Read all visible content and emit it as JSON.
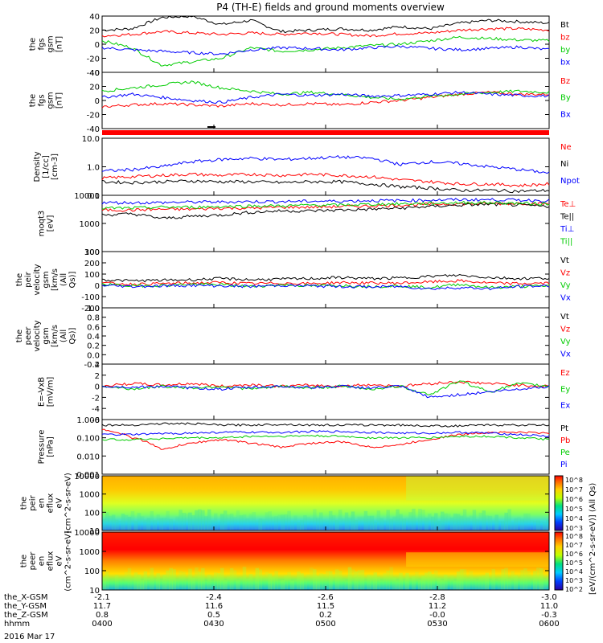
{
  "title": "P4 (TH-E) fields and ground moments overview",
  "date_label": "2016 Mar 17",
  "x_axis": {
    "rows": [
      {
        "label": "the_X-GSM",
        "values": [
          "-2.1",
          "-2.4",
          "-2.6",
          "-2.8",
          "-3.0"
        ]
      },
      {
        "label": "the_Y-GSM",
        "values": [
          "11.7",
          "11.6",
          "11.5",
          "11.2",
          "11.0"
        ]
      },
      {
        "label": "the_Z-GSM",
        "values": [
          "0.8",
          "0.5",
          "0.2",
          "-0.0",
          "-0.3"
        ]
      },
      {
        "label": "hhmm",
        "values": [
          "0400",
          "0430",
          "0500",
          "0530",
          "0600"
        ]
      }
    ]
  },
  "colors": {
    "black": "#000000",
    "red": "#ff0000",
    "green": "#00cc00",
    "blue": "#0000ff"
  },
  "colorbar": {
    "label": "[eV/(cm^2-s-sr-eV)] (All Qs)",
    "ticks_top": [
      "10^8",
      "10^7",
      "10^6",
      "10^5",
      "10^4",
      "10^3"
    ],
    "ticks_bottom": [
      "10^8",
      "10^7",
      "10^6",
      "10^5",
      "10^4",
      "10^3",
      "10^2"
    ]
  },
  "chart_data": [
    {
      "type": "line",
      "ylabel": "the fgs gsm [nT]",
      "ylim": [
        -40,
        40
      ],
      "yticks": [
        "40",
        "20",
        "0",
        "-20",
        "-40"
      ],
      "legend": [
        "Bt",
        "bz",
        "by",
        "bx"
      ],
      "legend_colors": [
        "#000000",
        "#ff0000",
        "#00cc00",
        "#0000ff"
      ],
      "series": [
        {
          "name": "Bt",
          "color": "#000000",
          "values": [
            20,
            22,
            38,
            40,
            28,
            34,
            18,
            20,
            22,
            20,
            25,
            22,
            30,
            34,
            32,
            30
          ]
        },
        {
          "name": "bz",
          "color": "#ff0000",
          "values": [
            12,
            14,
            18,
            16,
            14,
            16,
            14,
            16,
            14,
            12,
            15,
            16,
            20,
            22,
            22,
            20
          ]
        },
        {
          "name": "by",
          "color": "#00cc00",
          "values": [
            5,
            -5,
            -30,
            -25,
            -20,
            -5,
            -10,
            -8,
            -5,
            -2,
            0,
            5,
            10,
            8,
            6,
            5
          ]
        },
        {
          "name": "bx",
          "color": "#0000ff",
          "values": [
            -5,
            -8,
            -10,
            -12,
            -14,
            -8,
            -5,
            -6,
            -8,
            -5,
            -3,
            -6,
            -8,
            -6,
            -4,
            -8
          ]
        }
      ]
    },
    {
      "type": "line",
      "ylabel": "the fgs gsm [nT]",
      "ylim": [
        -50,
        40
      ],
      "yticks": [
        "40",
        "20",
        "0",
        "-20",
        "-40"
      ],
      "legend": [
        "Bz",
        "By",
        "Bx"
      ],
      "legend_colors": [
        "#ff0000",
        "#00cc00",
        "#0000ff"
      ],
      "series": [
        {
          "name": "Bz",
          "color": "#ff0000",
          "values": [
            -15,
            -12,
            -10,
            -12,
            -14,
            -10,
            -12,
            -10,
            -12,
            -8,
            -5,
            0,
            5,
            8,
            5,
            5
          ]
        },
        {
          "name": "By",
          "color": "#00cc00",
          "values": [
            10,
            15,
            20,
            25,
            15,
            10,
            5,
            8,
            5,
            0,
            -3,
            2,
            5,
            8,
            10,
            8
          ]
        },
        {
          "name": "Bx",
          "color": "#0000ff",
          "values": [
            0,
            5,
            0,
            -5,
            -8,
            0,
            5,
            3,
            5,
            2,
            3,
            5,
            8,
            5,
            3,
            2
          ]
        }
      ]
    },
    {
      "type": "line",
      "ylabel": "Density [1/cc] [cm-3]",
      "yscale": "log",
      "ylim": [
        0.1,
        10
      ],
      "yticks": [
        "10.0",
        "1.0",
        "0.1"
      ],
      "legend": [
        "Ne",
        "Ni",
        "Npot"
      ],
      "legend_colors": [
        "#ff0000",
        "#000000",
        "#0000ff"
      ],
      "series": [
        {
          "name": "Ne",
          "color": "#ff0000",
          "values": [
            0.4,
            0.45,
            0.5,
            0.55,
            0.5,
            0.55,
            0.5,
            0.55,
            0.5,
            0.45,
            0.35,
            0.3,
            0.25,
            0.25,
            0.22,
            0.25
          ]
        },
        {
          "name": "Ni",
          "color": "#000000",
          "values": [
            0.3,
            0.28,
            0.3,
            0.32,
            0.3,
            0.3,
            0.28,
            0.3,
            0.3,
            0.25,
            0.2,
            0.18,
            0.15,
            0.15,
            0.14,
            0.15
          ]
        },
        {
          "name": "Npot",
          "color": "#0000ff",
          "values": [
            0.7,
            0.8,
            1.0,
            1.5,
            1.8,
            2.0,
            1.8,
            2.0,
            2.2,
            2.0,
            1.2,
            1.5,
            1.3,
            1.0,
            0.8,
            0.6
          ]
        }
      ]
    },
    {
      "type": "line",
      "ylabel": "moqt3 [eV]",
      "yscale": "log",
      "ylim": [
        100,
        10000
      ],
      "yticks": [
        "10000",
        "1000",
        "100"
      ],
      "legend": [
        "Te⊥",
        "Te||",
        "Ti⊥",
        "Ti||"
      ],
      "legend_colors": [
        "#ff0000",
        "#000000",
        "#0000ff",
        "#00cc00"
      ],
      "series": [
        {
          "name": "Te⊥",
          "color": "#ff0000",
          "values": [
            3000,
            3000,
            3200,
            3200,
            3500,
            3500,
            3800,
            3800,
            4000,
            4200,
            4500,
            4800,
            5000,
            5000,
            5200,
            5000
          ]
        },
        {
          "name": "Te||",
          "color": "#000000",
          "values": [
            2000,
            2200,
            1500,
            1800,
            2000,
            2500,
            2800,
            2800,
            3000,
            3200,
            3500,
            4000,
            4500,
            4800,
            4500,
            4000
          ]
        },
        {
          "name": "Ti⊥",
          "color": "#0000ff",
          "values": [
            5500,
            5500,
            5500,
            5800,
            5800,
            6000,
            6000,
            6200,
            6200,
            6500,
            6500,
            6800,
            7000,
            7000,
            6800,
            6500
          ]
        },
        {
          "name": "Ti||",
          "color": "#00cc00",
          "values": [
            3500,
            3500,
            3800,
            3800,
            4000,
            4200,
            4200,
            4500,
            4500,
            4800,
            5000,
            5200,
            5500,
            5500,
            5200,
            5000
          ]
        }
      ]
    },
    {
      "type": "line",
      "ylabel": "the peir velocity gsm [km/s (All Qs)]",
      "ylim": [
        -200,
        300
      ],
      "yticks": [
        "300",
        "200",
        "100",
        "0",
        "-100",
        "-200"
      ],
      "legend": [
        "Vt",
        "Vz",
        "Vy",
        "Vx"
      ],
      "legend_colors": [
        "#000000",
        "#ff0000",
        "#00cc00",
        "#0000ff"
      ],
      "series": [
        {
          "name": "Vt",
          "color": "#000000",
          "values": [
            50,
            40,
            45,
            50,
            60,
            50,
            55,
            60,
            70,
            60,
            65,
            80,
            90,
            70,
            60,
            65
          ]
        },
        {
          "name": "Vz",
          "color": "#ff0000",
          "values": [
            20,
            10,
            15,
            20,
            25,
            15,
            20,
            15,
            25,
            20,
            20,
            30,
            40,
            20,
            15,
            20
          ]
        },
        {
          "name": "Vy",
          "color": "#00cc00",
          "values": [
            10,
            -5,
            0,
            10,
            5,
            -10,
            5,
            -5,
            0,
            -10,
            -5,
            -20,
            10,
            -20,
            -10,
            -5
          ]
        },
        {
          "name": "Vx",
          "color": "#0000ff",
          "values": [
            0,
            -10,
            -5,
            0,
            -5,
            -10,
            0,
            -5,
            -10,
            -15,
            -10,
            -30,
            -20,
            -30,
            -10,
            -5
          ]
        }
      ]
    },
    {
      "type": "line",
      "ylabel": "the peer velocity gsm [km/s (All Qs)]",
      "ylim": [
        -0.2,
        1.0
      ],
      "yticks": [
        "1.0",
        "0.8",
        "0.6",
        "0.4",
        "0.2",
        "0.0",
        "-0.2"
      ],
      "legend": [
        "Vt",
        "Vz",
        "Vy",
        "Vx"
      ],
      "legend_colors": [
        "#000000",
        "#ff0000",
        "#00cc00",
        "#0000ff"
      ],
      "series": []
    },
    {
      "type": "line",
      "ylabel": "E=-VxB [mV/m]",
      "ylim": [
        -6,
        4
      ],
      "yticks": [
        "4",
        "2",
        "0",
        "-2",
        "-4",
        "-6"
      ],
      "legend": [
        "Ez",
        "Ey",
        "Ex"
      ],
      "legend_colors": [
        "#ff0000",
        "#00cc00",
        "#0000ff"
      ],
      "series": [
        {
          "name": "Ez",
          "color": "#ff0000",
          "values": [
            0,
            0.5,
            0.2,
            0.5,
            0,
            0.3,
            0,
            0.2,
            0,
            0.3,
            0,
            0.5,
            0.8,
            0.5,
            0.2,
            0
          ]
        },
        {
          "name": "Ey",
          "color": "#00cc00",
          "values": [
            0,
            -0.5,
            0,
            -0.3,
            0,
            -0.5,
            0,
            -0.3,
            0,
            -0.5,
            0,
            -1.5,
            1,
            -1,
            0.5,
            0
          ]
        },
        {
          "name": "Ex",
          "color": "#0000ff",
          "values": [
            0,
            -0.2,
            0,
            -0.3,
            -0.5,
            -0.2,
            0,
            -0.2,
            0,
            -0.3,
            0,
            -2,
            -1.5,
            -1,
            -0.5,
            0
          ]
        }
      ]
    },
    {
      "type": "line",
      "ylabel": "Pressure [nPa]",
      "yscale": "log",
      "ylim": [
        0.001,
        1.0
      ],
      "yticks": [
        "1.000",
        "0.100",
        "0.010",
        "0.001"
      ],
      "legend": [
        "Pt",
        "Pb",
        "Pe",
        "Pi"
      ],
      "legend_colors": [
        "#000000",
        "#ff0000",
        "#00cc00",
        "#0000ff"
      ],
      "series": [
        {
          "name": "Pt",
          "color": "#000000",
          "values": [
            0.5,
            0.5,
            0.6,
            0.6,
            0.5,
            0.5,
            0.55,
            0.5,
            0.5,
            0.5,
            0.5,
            0.45,
            0.45,
            0.5,
            0.5,
            0.5
          ]
        },
        {
          "name": "Pb",
          "color": "#ff0000",
          "values": [
            0.3,
            0.1,
            0.02,
            0.05,
            0.08,
            0.05,
            0.03,
            0.05,
            0.06,
            0.03,
            0.04,
            0.08,
            0.15,
            0.2,
            0.2,
            0.18
          ]
        },
        {
          "name": "Pe",
          "color": "#00cc00",
          "values": [
            0.08,
            0.08,
            0.09,
            0.1,
            0.1,
            0.12,
            0.12,
            0.13,
            0.12,
            0.1,
            0.1,
            0.1,
            0.12,
            0.12,
            0.1,
            0.08
          ]
        },
        {
          "name": "Pi",
          "color": "#0000ff",
          "values": [
            0.15,
            0.15,
            0.17,
            0.18,
            0.2,
            0.2,
            0.2,
            0.22,
            0.22,
            0.2,
            0.18,
            0.18,
            0.2,
            0.18,
            0.15,
            0.12
          ]
        }
      ]
    },
    {
      "type": "heatmap",
      "ylabel": "the peir en eflux eV (cm^2-s-sr-eV)",
      "yscale": "log",
      "ylim": [
        10,
        20000
      ],
      "yticks": [
        "10000",
        "1000",
        "100",
        "10"
      ]
    },
    {
      "type": "heatmap",
      "ylabel": "the peer en eflux eV (cm^2-s-sr-eV)",
      "yscale": "log",
      "ylim": [
        5,
        20000
      ],
      "yticks": [
        "10000",
        "1000",
        "100",
        "10"
      ]
    }
  ]
}
